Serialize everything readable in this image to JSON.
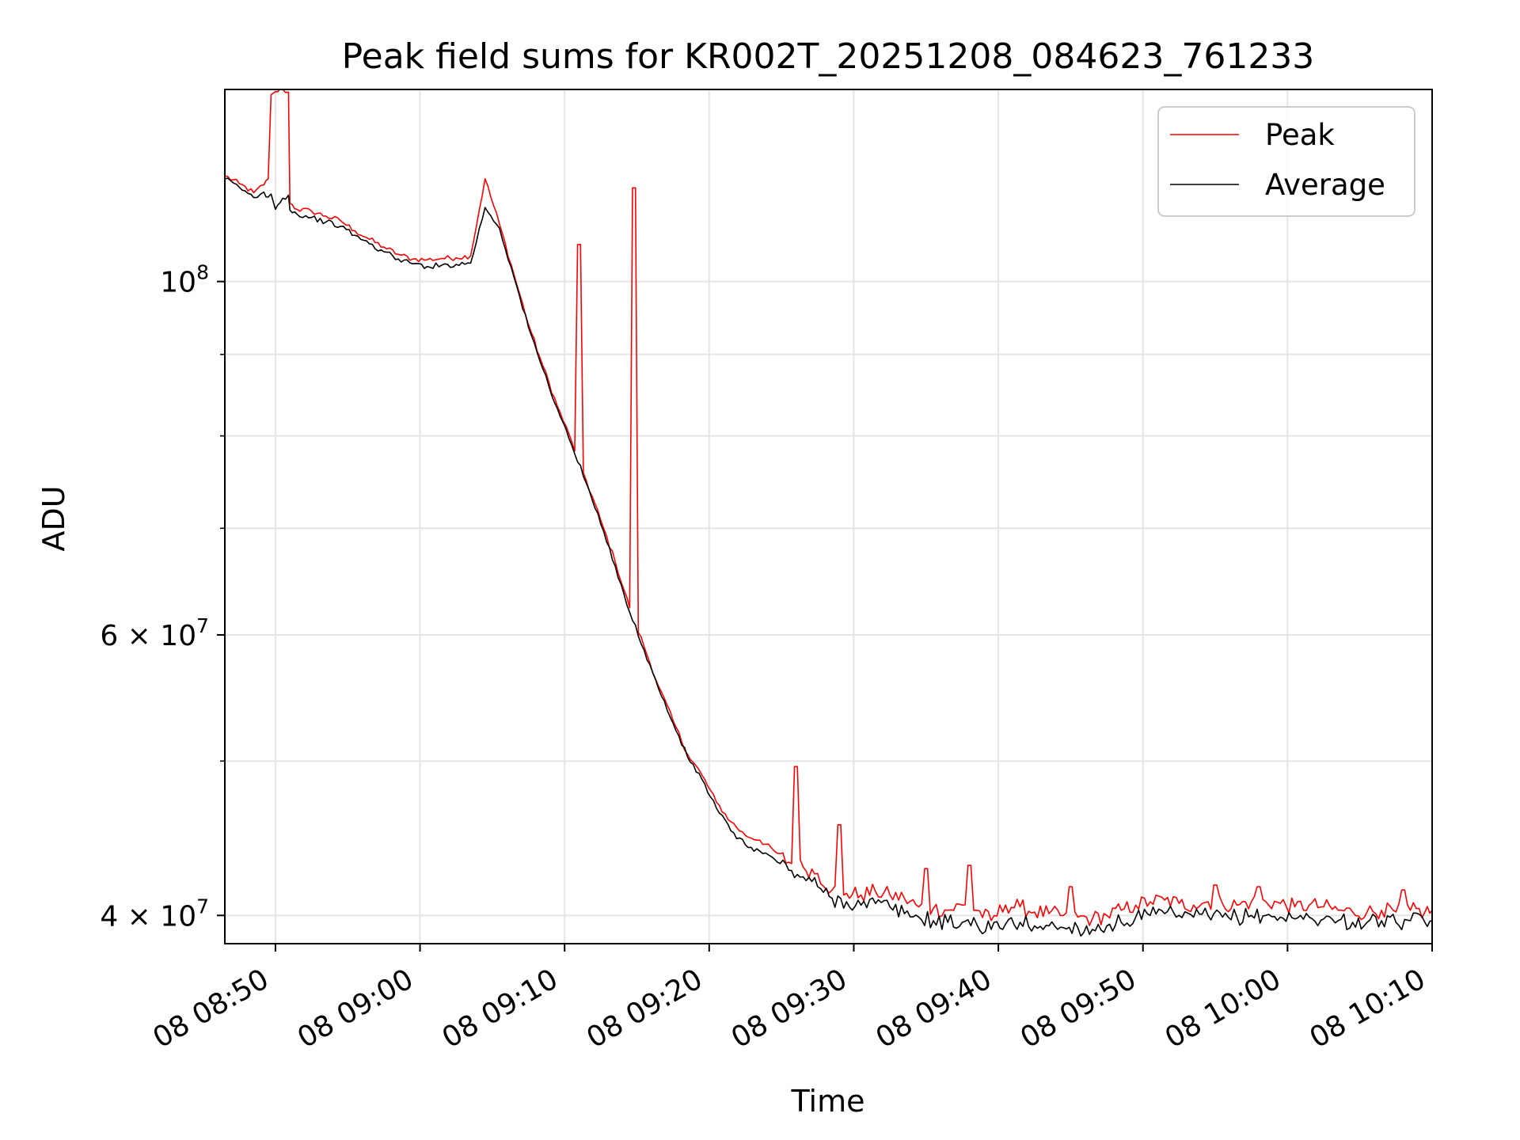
{
  "chart_data": {
    "type": "line",
    "title": "Peak field sums for KR002T_20251208_084623_761233",
    "xlabel": "Time",
    "ylabel": "ADU",
    "yscale": "log",
    "xlim_minutes": [
      -3.5,
      80
    ],
    "ylim": [
      38400000,
      132000000
    ],
    "grid": true,
    "legend_position": "upper right",
    "x_ticks": [
      {
        "minutes": 0,
        "label": "08 08:50"
      },
      {
        "minutes": 10,
        "label": "08 09:00"
      },
      {
        "minutes": 20,
        "label": "08 09:10"
      },
      {
        "minutes": 30,
        "label": "08 09:20"
      },
      {
        "minutes": 40,
        "label": "08 09:30"
      },
      {
        "minutes": 50,
        "label": "08 09:40"
      },
      {
        "minutes": 60,
        "label": "08 09:50"
      },
      {
        "minutes": 70,
        "label": "08 10:00"
      },
      {
        "minutes": 80,
        "label": "08 10:10"
      }
    ],
    "y_major_ticks": [
      {
        "value": 100000000,
        "base": "10",
        "exp": "8"
      },
      {
        "value": 60000000,
        "base": "6 × 10",
        "exp": "7"
      },
      {
        "value": 40000000,
        "base": "4 × 10",
        "exp": "7"
      }
    ],
    "y_minor_gridlines": [
      50000000,
      70000000,
      80000000,
      90000000
    ],
    "series": [
      {
        "name": "Peak",
        "color": "#ff0000",
        "minutes": [
          -3.5,
          -2.5,
          -1.5,
          -0.8,
          -0.5,
          -0.3,
          0,
          0.5,
          0.9,
          1,
          1.5,
          2.5,
          3.5,
          4.5,
          5.5,
          6.5,
          7.5,
          8.5,
          9.5,
          10.5,
          11.5,
          12.5,
          13.5,
          14.5,
          15.5,
          16.5,
          17.5,
          18.5,
          19.5,
          20.5,
          21.5,
          22.5,
          23.5,
          24.5,
          25.5,
          26.5,
          27.5,
          28.5,
          29.5,
          30.5,
          31.5,
          32.5,
          33.5,
          34.5,
          35.5,
          36.5,
          37.5,
          38.5,
          39.5,
          40.5,
          41.5,
          42.5,
          43.5,
          44.5,
          45.5,
          46.5,
          47.5,
          48.5,
          49.5,
          50.5,
          51.5,
          52.5,
          53.5,
          54.5,
          55.5,
          56.5,
          57.5,
          58.5,
          59.5,
          60.5,
          61.5,
          62.5,
          63.5,
          64.5,
          65.5,
          66.5,
          67.5,
          68.5,
          69.5,
          70.5,
          71.5,
          72.5,
          73.5,
          74.5,
          75.5,
          76.5,
          77.5,
          78.5,
          79.5,
          80
        ],
        "values": [
          116500000,
          115200000,
          113700000,
          115000000,
          116000000,
          131000000,
          131600000,
          132000000,
          131500000,
          112000000,
          111000000,
          110700000,
          109900000,
          109200000,
          107600000,
          106300000,
          105100000,
          104000000,
          103300000,
          103200000,
          103400000,
          103500000,
          103800000,
          116000000,
          108600000,
          101000000,
          94000000,
          88500000,
          83500000,
          79300000,
          75000000,
          70800000,
          66700000,
          62400000,
          59000000,
          55700000,
          53000000,
          50500000,
          49000000,
          47100000,
          45800000,
          44900000,
          44600000,
          43900000,
          43200000,
          42900000,
          42500000,
          41500000,
          41300000,
          41200000,
          41400000,
          41200000,
          41000000,
          40500000,
          40400000,
          40300000,
          40600000,
          40300000,
          39700000,
          40600000,
          40500000,
          40200000,
          40100000,
          40000000,
          39900000,
          39800000,
          40000000,
          40300000,
          40600000,
          40800000,
          40900000,
          40700000,
          40600000,
          40800000,
          40700000,
          40600000,
          40800000,
          40800000,
          40700000,
          40500000,
          40600000,
          40500000,
          40300000,
          40200000,
          40200000,
          40300000,
          40200000,
          40300000,
          40200000,
          40300000
        ],
        "spikes": [
          {
            "minutes": 21,
            "value": 105500000
          },
          {
            "minutes": 24.8,
            "value": 114500000
          },
          {
            "minutes": 36,
            "value": 49600000
          },
          {
            "minutes": 39,
            "value": 45600000
          },
          {
            "minutes": 40.5,
            "value": 43800000
          },
          {
            "minutes": 43.5,
            "value": 43400000
          },
          {
            "minutes": 45,
            "value": 42800000
          },
          {
            "minutes": 46.5,
            "value": 42500000
          },
          {
            "minutes": 48,
            "value": 43000000
          },
          {
            "minutes": 50.5,
            "value": 41800000
          },
          {
            "minutes": 52.5,
            "value": 41900000
          },
          {
            "minutes": 55,
            "value": 41700000
          },
          {
            "minutes": 59.5,
            "value": 41900000
          },
          {
            "minutes": 61.5,
            "value": 42700000
          },
          {
            "minutes": 63.5,
            "value": 42800000
          },
          {
            "minutes": 65,
            "value": 41800000
          },
          {
            "minutes": 68,
            "value": 41700000
          },
          {
            "minutes": 70.5,
            "value": 42700000
          },
          {
            "minutes": 72.5,
            "value": 42000000
          },
          {
            "minutes": 75.5,
            "value": 41800000
          },
          {
            "minutes": 78,
            "value": 41500000
          }
        ]
      },
      {
        "name": "Average",
        "color": "#000000",
        "minutes": [
          -3.5,
          -2.5,
          -1.5,
          -0.8,
          -0.5,
          -0.3,
          0,
          0.5,
          0.9,
          1,
          1.5,
          2.5,
          3.5,
          4.5,
          5.5,
          6.5,
          7.5,
          8.5,
          9.5,
          10.5,
          11.5,
          12.5,
          13.5,
          14.5,
          15.5,
          16.5,
          17.5,
          18.5,
          19.5,
          20.5,
          21.5,
          22.5,
          23.5,
          24.5,
          25.5,
          26.5,
          27.5,
          28.5,
          29.5,
          30.5,
          31.5,
          32.5,
          33.5,
          34.5,
          35.5,
          36.5,
          37.5,
          38.5,
          39.5,
          40.5,
          41.5,
          42.5,
          43.5,
          44.5,
          45.5,
          46.5,
          47.5,
          48.5,
          49.5,
          50.5,
          51.5,
          52.5,
          53.5,
          54.5,
          55.5,
          56.5,
          57.5,
          58.5,
          59.5,
          60.5,
          61.5,
          62.5,
          63.5,
          64.5,
          65.5,
          66.5,
          67.5,
          68.5,
          69.5,
          70.5,
          71.5,
          72.5,
          73.5,
          74.5,
          75.5,
          76.5,
          77.5,
          78.5,
          79.5,
          80
        ],
        "values": [
          116000000,
          114600000,
          112900000,
          113800000,
          113000000,
          113500000,
          111000000,
          112800000,
          113300000,
          110900000,
          110200000,
          109700000,
          109000000,
          108300000,
          106900000,
          105600000,
          104400000,
          103300000,
          102600000,
          102200000,
          102400000,
          102500000,
          102700000,
          111300000,
          108000000,
          100600000,
          93600000,
          88100000,
          83200000,
          78900000,
          74700000,
          70400000,
          66300000,
          62000000,
          58700000,
          55500000,
          52800000,
          50300000,
          48700000,
          46700000,
          45200000,
          44300000,
          43900000,
          43400000,
          42700000,
          42300000,
          41700000,
          41000000,
          40800000,
          40600000,
          40700000,
          40500000,
          40100000,
          39900000,
          39700000,
          39600000,
          39600000,
          39500000,
          39200000,
          39500000,
          39600000,
          39400000,
          39400000,
          39300000,
          39300000,
          39200000,
          39400000,
          39600000,
          39900000,
          40000000,
          40100000,
          40000000,
          39900000,
          40000000,
          39900000,
          39900000,
          40000000,
          40000000,
          39900000,
          39800000,
          39900000,
          39800000,
          39700000,
          39600000,
          39600000,
          39700000,
          39600000,
          39700000,
          39600000,
          39700000
        ]
      }
    ]
  }
}
